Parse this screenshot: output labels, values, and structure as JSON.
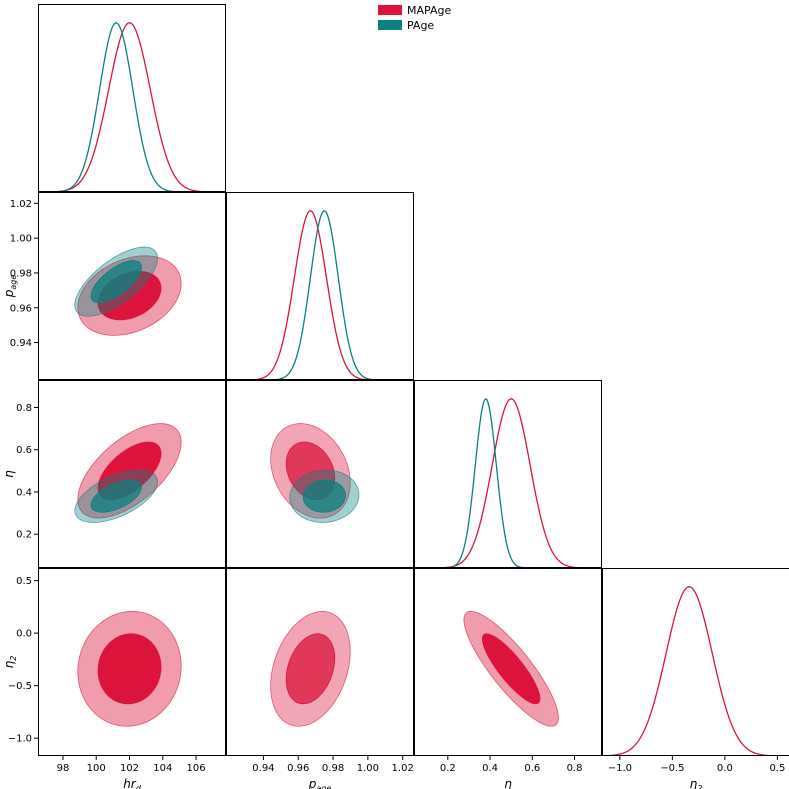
{
  "chart_data": {
    "type": "corner",
    "title": "",
    "colors": {
      "MAPAge": "#dc143c",
      "PAge": "#0a8080"
    },
    "legend": {
      "placement": "top-center",
      "entries": [
        {
          "name": "MAPAge",
          "color": "#dc143c"
        },
        {
          "name": "PAge",
          "color": "#0a8080"
        }
      ]
    },
    "params": [
      {
        "key": "hrd",
        "label": "hr",
        "sub": "d",
        "range": [
          96.5,
          107.8
        ],
        "ticks": [
          98,
          100,
          102,
          104,
          106
        ],
        "tick_labels": [
          "98",
          "100",
          "102",
          "104",
          "106"
        ]
      },
      {
        "key": "page",
        "label": "p",
        "sub": "age",
        "range": [
          0.9185,
          1.0265
        ],
        "ticks": [
          0.94,
          0.96,
          0.98,
          1.0,
          1.02
        ],
        "tick_labels": [
          "0.94",
          "0.96",
          "0.98",
          "1.00",
          "1.02"
        ]
      },
      {
        "key": "eta",
        "label": "η",
        "sub": "",
        "range": [
          0.04,
          0.93
        ],
        "ticks": [
          0.2,
          0.4,
          0.6,
          0.8
        ],
        "tick_labels": [
          "0.2",
          "0.4",
          "0.6",
          "0.8"
        ]
      },
      {
        "key": "eta2",
        "label": "η",
        "sub": "2",
        "range": [
          -1.17,
          0.62
        ],
        "ticks": [
          -1.0,
          -0.5,
          0.0,
          0.5
        ],
        "tick_labels": [
          "−1.0",
          "−0.5",
          "0.0",
          "0.5"
        ]
      }
    ],
    "series": [
      {
        "name": "MAPAge",
        "color": "#dc143c",
        "mean": {
          "hrd": 102.0,
          "page": 0.967,
          "eta": 0.5,
          "eta2": -0.34
        },
        "sd": {
          "hrd": 1.25,
          "page": 0.0092,
          "eta": 0.09,
          "eta2": 0.22
        },
        "corr": {
          "hrd,page": 0.3,
          "hrd,eta": 0.6,
          "hrd,eta2": 0.05,
          "page,eta": -0.25,
          "page,eta2": 0.3,
          "eta,eta2": -0.85
        }
      },
      {
        "name": "PAge",
        "color": "#0a8080",
        "mean": {
          "hrd": 101.2,
          "page": 0.975,
          "eta": 0.38,
          "eta2": null
        },
        "sd": {
          "hrd": 1.0,
          "page": 0.008,
          "eta": 0.05,
          "eta2": null
        },
        "corr": {
          "hrd,page": 0.68,
          "hrd,eta": 0.55,
          "page,eta": 0.05
        }
      }
    ]
  }
}
